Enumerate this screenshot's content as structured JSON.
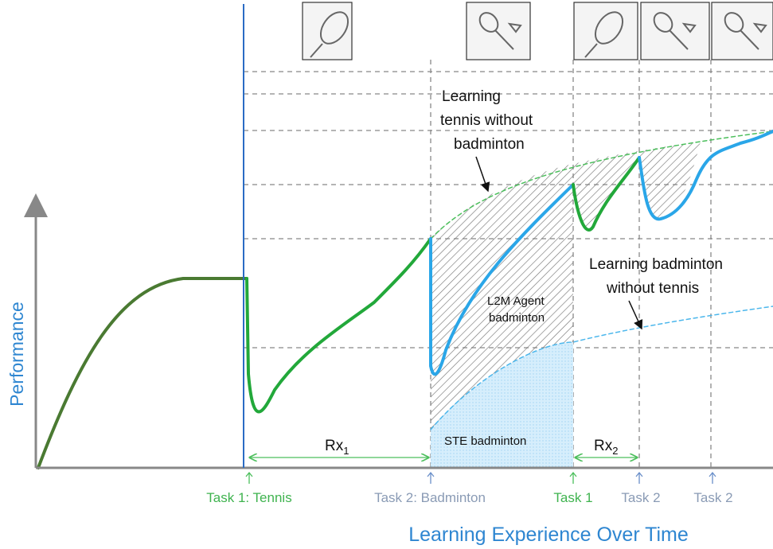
{
  "annotations": {
    "tennis_without_badminton": [
      "Learning",
      "tennis without",
      "badminton"
    ],
    "badminton_without_tennis": [
      "Learning badminton",
      "without tennis"
    ],
    "l2m": [
      "L2M Agent",
      "badminton"
    ],
    "ste": "STE badminton",
    "rx1": {
      "base": "Rx",
      "sub": "1"
    },
    "rx2": {
      "base": "Rx",
      "sub": "2"
    }
  },
  "tasks": [
    "Task 1: Tennis",
    "Task 2: Badminton",
    "Task 1",
    "Task 2",
    "Task 2"
  ],
  "axes": {
    "y": "Performance",
    "x": "Learning Experience Over Time"
  }
}
